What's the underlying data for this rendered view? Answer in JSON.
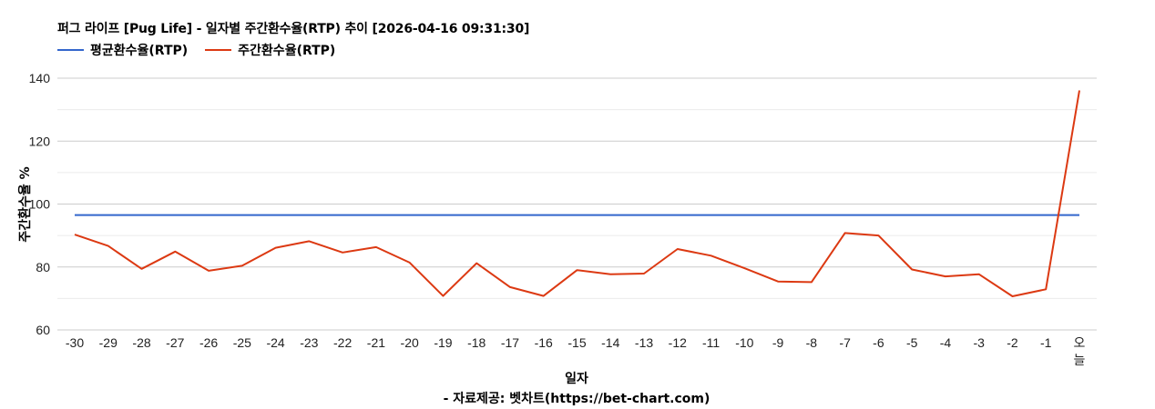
{
  "header": {
    "title": "퍼그 라이프 [Pug Life] - 일자별 주간환수율(RTP) 추이 [2026-04-16 09:31:30]"
  },
  "legend": [
    {
      "label": "평균환수율(RTP)",
      "color": "#3366cc"
    },
    {
      "label": "주간환수율(RTP)",
      "color": "#dc3912"
    }
  ],
  "axes": {
    "y_title": "주간환수율 %",
    "x_title": "일자"
  },
  "footer": {
    "source": "- 자료제공: 벳차트(https://bet-chart.com)"
  },
  "chart_data": {
    "type": "line",
    "title": "퍼그 라이프 [Pug Life] - 일자별 주간환수율(RTP) 추이 [2026-04-16 09:31:30]",
    "xlabel": "일자",
    "ylabel": "주간환수율 %",
    "ylim": [
      60,
      140
    ],
    "yticks": [
      60,
      80,
      100,
      120,
      140
    ],
    "minor_gridlines": [
      70,
      90,
      110,
      130
    ],
    "grid": true,
    "legend_position": "top",
    "categories": [
      "-30",
      "-29",
      "-28",
      "-27",
      "-26",
      "-25",
      "-24",
      "-23",
      "-22",
      "-21",
      "-20",
      "-19",
      "-18",
      "-17",
      "-16",
      "-15",
      "-14",
      "-13",
      "-12",
      "-11",
      "-10",
      "-9",
      "-8",
      "-7",
      "-6",
      "-5",
      "-4",
      "-3",
      "-2",
      "-1",
      "오늘"
    ],
    "series": [
      {
        "name": "평균환수율(RTP)",
        "color": "#3366cc",
        "values": [
          96.5,
          96.5,
          96.5,
          96.5,
          96.5,
          96.5,
          96.5,
          96.5,
          96.5,
          96.5,
          96.5,
          96.5,
          96.5,
          96.5,
          96.5,
          96.5,
          96.5,
          96.5,
          96.5,
          96.5,
          96.5,
          96.5,
          96.5,
          96.5,
          96.5,
          96.5,
          96.5,
          96.5,
          96.5,
          96.5,
          96.5
        ]
      },
      {
        "name": "주간환수율(RTP)",
        "color": "#dc3912",
        "values": [
          90.3,
          86.7,
          79.4,
          84.9,
          78.8,
          80.4,
          86.1,
          88.2,
          84.6,
          86.3,
          81.4,
          70.8,
          81.2,
          73.6,
          70.8,
          79.0,
          77.7,
          77.9,
          85.7,
          83.6,
          79.6,
          75.4,
          75.2,
          90.8,
          90.0,
          79.2,
          77.0,
          77.7,
          70.7,
          72.9,
          136.1
        ]
      }
    ]
  }
}
